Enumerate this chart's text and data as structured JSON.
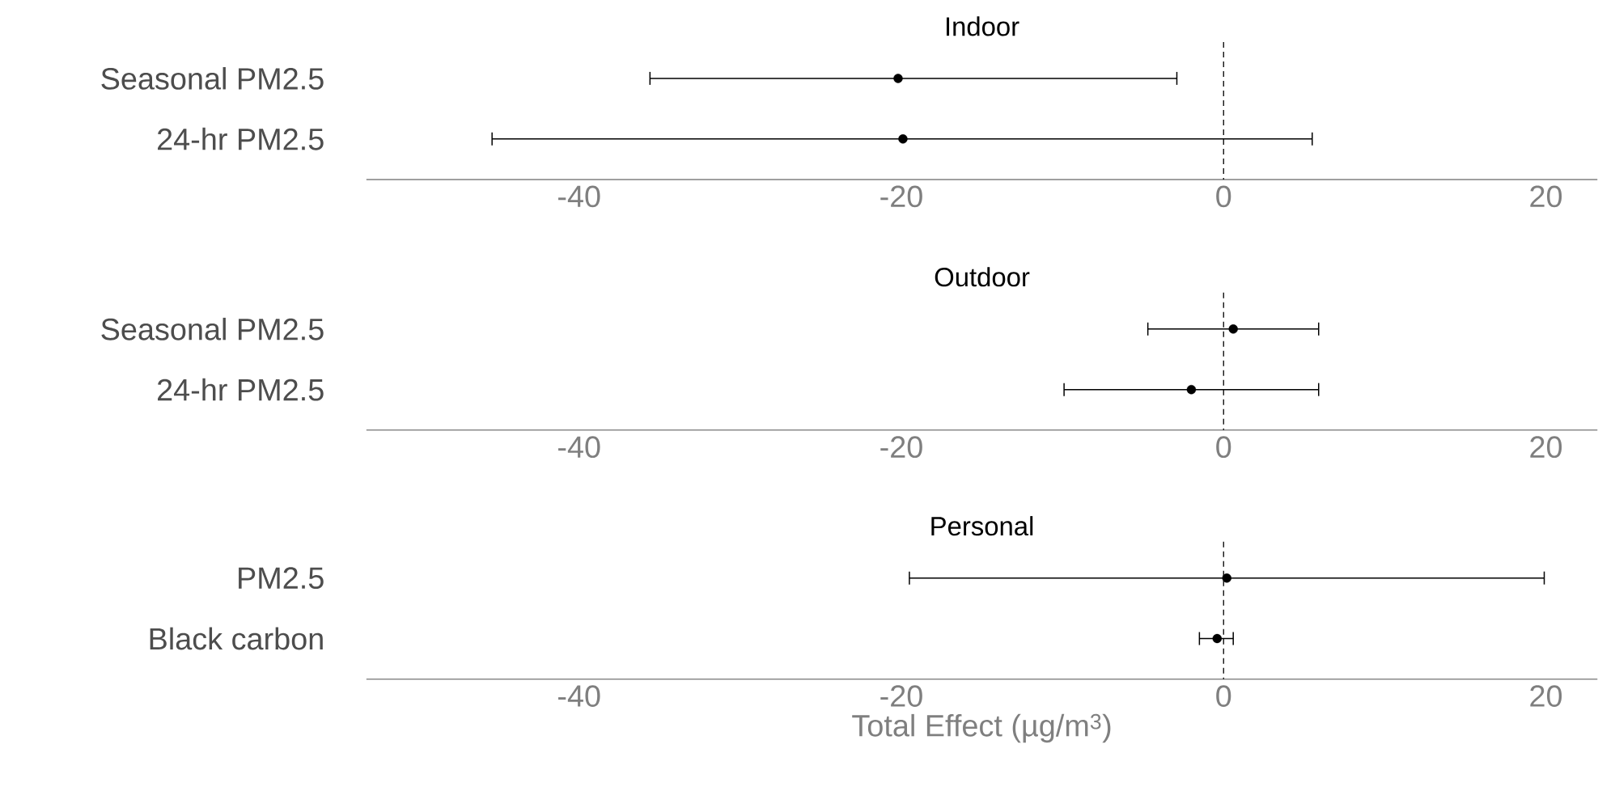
{
  "chart_data": [
    {
      "type": "scatter",
      "orientation": "horizontal",
      "title": "Indoor",
      "categories": [
        "Seasonal PM2.5",
        "24-hr PM2.5"
      ],
      "values": [
        -20.2,
        -19.9
      ],
      "errors": [
        [
          -35.6,
          -2.9
        ],
        [
          -45.4,
          5.5
        ]
      ],
      "color": "#000000",
      "marker": "circle",
      "xlim": [
        -53.2,
        23.2
      ],
      "xticks": [
        -40,
        -20,
        0,
        20
      ],
      "grid": false,
      "ref_lines": [
        {
          "axis": "x",
          "value": 0,
          "line_style": "dashed",
          "color": "#000000"
        }
      ]
    },
    {
      "type": "scatter",
      "orientation": "horizontal",
      "title": "Outdoor",
      "categories": [
        "Seasonal PM2.5",
        "24-hr PM2.5"
      ],
      "values": [
        0.6,
        -2.0
      ],
      "errors": [
        [
          -4.7,
          5.9
        ],
        [
          -9.9,
          5.9
        ]
      ],
      "color": "#000000",
      "marker": "circle",
      "xlim": [
        -53.2,
        23.2
      ],
      "xticks": [
        -40,
        -20,
        0,
        20
      ],
      "grid": false,
      "ref_lines": [
        {
          "axis": "x",
          "value": 0,
          "line_style": "dashed",
          "color": "#000000"
        }
      ]
    },
    {
      "type": "scatter",
      "orientation": "horizontal",
      "title": "Personal",
      "xlabel": "Total Effect (µg/m$^{3}$)",
      "categories": [
        "PM2.5",
        "Black carbon"
      ],
      "values": [
        0.2,
        -0.4
      ],
      "errors": [
        [
          -19.5,
          19.9
        ],
        [
          -1.5,
          0.6
        ]
      ],
      "color": "#000000",
      "marker": "circle",
      "xlim": [
        -53.2,
        23.2
      ],
      "xticks": [
        -40,
        -20,
        0,
        20
      ],
      "grid": false,
      "ref_lines": [
        {
          "axis": "x",
          "value": 0,
          "line_style": "dashed",
          "color": "#000000"
        }
      ]
    }
  ]
}
